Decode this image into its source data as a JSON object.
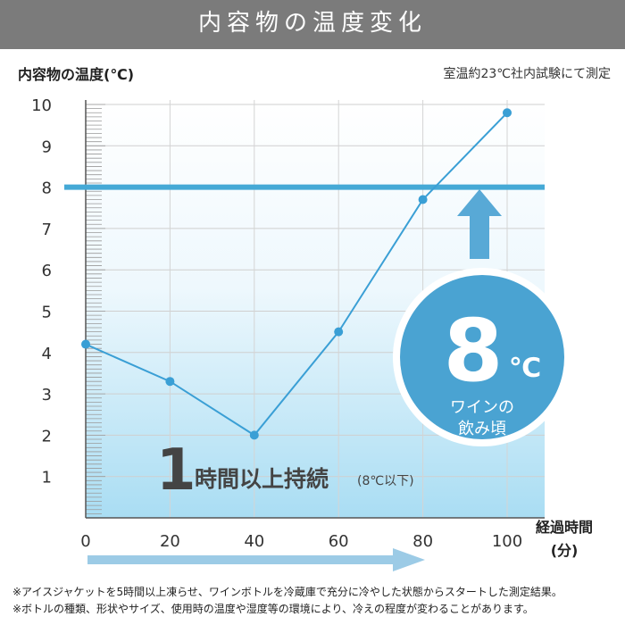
{
  "header": {
    "title": "内容物の温度変化"
  },
  "note": "室温約23℃社内試験にて測定",
  "chart_data": {
    "type": "line",
    "ylabel": "内容物の温度(℃)",
    "xlabel_line1": "経過時間",
    "xlabel_line2": "(分)",
    "x": [
      0,
      20,
      40,
      60,
      80,
      100
    ],
    "series": [
      {
        "values": [
          4.2,
          3.3,
          2.0,
          4.5,
          7.7,
          9.8
        ]
      }
    ],
    "x_ticks": [
      "0",
      "20",
      "40",
      "60",
      "80",
      "100"
    ],
    "y_ticks": [
      "1",
      "2",
      "3",
      "4",
      "5",
      "6",
      "7",
      "8",
      "9",
      "10"
    ],
    "xlim": [
      0,
      108
    ],
    "ylim": [
      0,
      10
    ],
    "threshold": 8,
    "colors": {
      "line": "#3a9fd5",
      "threshold": "#45a9d6",
      "badge": "#4aa3d2",
      "arrow": "#58a9d6",
      "time_arrow": "#9ccbe6"
    },
    "badge": {
      "value": "8",
      "unit": "℃",
      "line1": "ワインの",
      "line2": "飲み頃"
    },
    "annotation": {
      "number": "1",
      "text": "時間以上持続",
      "small": "(8℃以下)"
    }
  },
  "footnotes": [
    "※アイスジャケットを5時間以上凍らせ、ワインボトルを冷蔵庫で充分に冷やした状態からスタートした測定結果。",
    "※ボトルの種類、形状やサイズ、使用時の温度や湿度等の環境により、冷えの程度が変わることがあります。"
  ]
}
